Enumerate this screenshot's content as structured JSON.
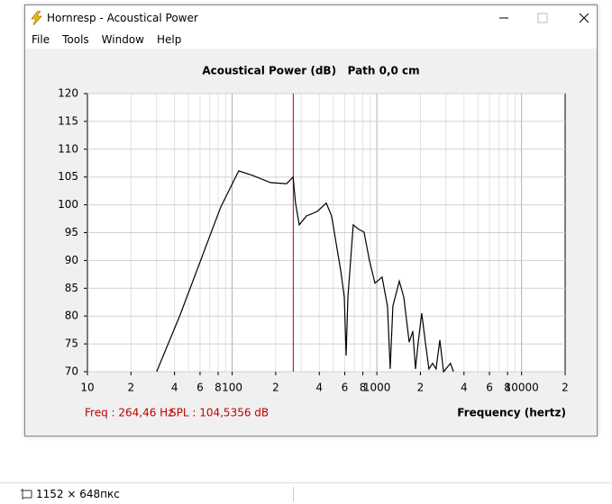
{
  "window": {
    "title": "Hornresp - Acoustical Power",
    "menu": [
      "File",
      "Tools",
      "Window",
      "Help"
    ]
  },
  "chart_data": {
    "type": "line",
    "title": "Acoustical Power (dB)   Path 0,0 cm",
    "x_label": "Frequency (hertz)",
    "x_scale": "log",
    "grid": true,
    "color": "#000000",
    "xlim": [
      10,
      20000
    ],
    "ylim": [
      70,
      120
    ],
    "xticks": [
      10,
      {
        "value": 20,
        "label": "2"
      },
      {
        "value": 40,
        "label": "4"
      },
      {
        "value": 60,
        "label": "6"
      },
      {
        "value": 80,
        "label": "8"
      },
      100,
      {
        "value": 200,
        "label": "2"
      },
      {
        "value": 400,
        "label": "4"
      },
      {
        "value": 600,
        "label": "6"
      },
      {
        "value": 800,
        "label": "8"
      },
      1000,
      {
        "value": 2000,
        "label": "2"
      },
      {
        "value": 4000,
        "label": "4"
      },
      {
        "value": 6000,
        "label": "6"
      },
      {
        "value": 8000,
        "label": "8"
      },
      10000,
      {
        "value": 20000,
        "label": "2"
      }
    ],
    "yticks": [
      70,
      75,
      80,
      85,
      90,
      95,
      100,
      105,
      110,
      115,
      120
    ],
    "x": [
      30.1,
      43.7,
      83.4,
      111,
      138,
      184,
      238,
      264,
      274,
      291,
      326,
      387,
      447,
      487,
      562,
      596,
      613,
      631,
      687,
      749,
      816,
      890,
      970,
      1087,
      1185,
      1237,
      1291,
      1428,
      1535,
      1673,
      1771,
      1849,
      1931,
      2042,
      2163,
      2291,
      2426,
      2566,
      2723,
      2890,
      3228,
      3382
    ],
    "values": [
      70,
      80.2,
      99.6,
      106.1,
      105.3,
      104.0,
      103.8,
      105.0,
      100.4,
      96.4,
      98.0,
      98.8,
      100.3,
      98.0,
      88.3,
      83.4,
      72.9,
      83.4,
      96.4,
      95.6,
      95.1,
      89.9,
      85.9,
      87.0,
      81.8,
      70.5,
      81.8,
      86.3,
      83.4,
      75.3,
      77.3,
      70.5,
      75.3,
      80.5,
      75.3,
      70.5,
      71.5,
      70.5,
      75.7,
      70,
      71.5,
      70
    ],
    "cursor": {
      "freq": 264.46,
      "color": "#c00000",
      "freq_label": "Freq : 264,46 Hz",
      "spl_label": "SPL : 104,5356 dB"
    }
  },
  "status_bar": {
    "size": "1152 × 648пкс"
  }
}
